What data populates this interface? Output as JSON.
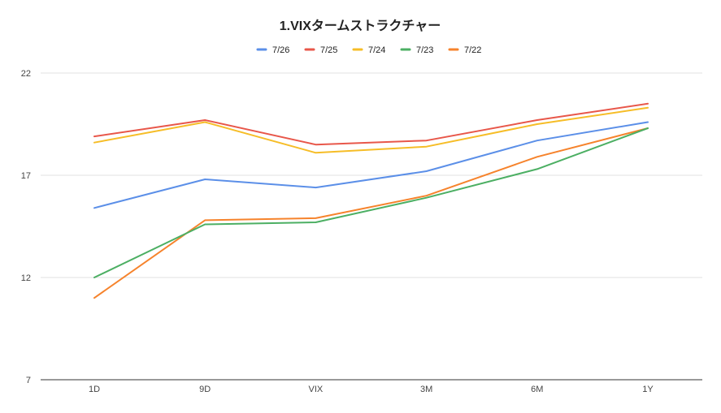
{
  "chart_data": {
    "type": "line",
    "title": "1.VIXタームストラクチャー",
    "categories": [
      "1D",
      "9D",
      "VIX",
      "3M",
      "6M",
      "1Y"
    ],
    "ylim": [
      7,
      22
    ],
    "yticks": [
      "7",
      "12",
      "17",
      "22"
    ],
    "grid": true,
    "legend_position": "top",
    "series": [
      {
        "name": "7/26",
        "color": "#5b8fe8",
        "values": [
          15.4,
          16.8,
          16.4,
          17.2,
          18.7,
          19.6
        ]
      },
      {
        "name": "7/25",
        "color": "#e8574a",
        "values": [
          18.9,
          19.7,
          18.5,
          18.7,
          19.7,
          20.5
        ]
      },
      {
        "name": "7/24",
        "color": "#f6bd27",
        "values": [
          18.6,
          19.6,
          18.1,
          18.4,
          19.5,
          20.3
        ]
      },
      {
        "name": "7/23",
        "color": "#4caf63",
        "values": [
          12.0,
          14.6,
          14.7,
          15.9,
          17.3,
          19.3
        ]
      },
      {
        "name": "7/22",
        "color": "#f6832c",
        "values": [
          11.0,
          14.8,
          14.9,
          16.0,
          17.9,
          19.3
        ]
      }
    ]
  }
}
